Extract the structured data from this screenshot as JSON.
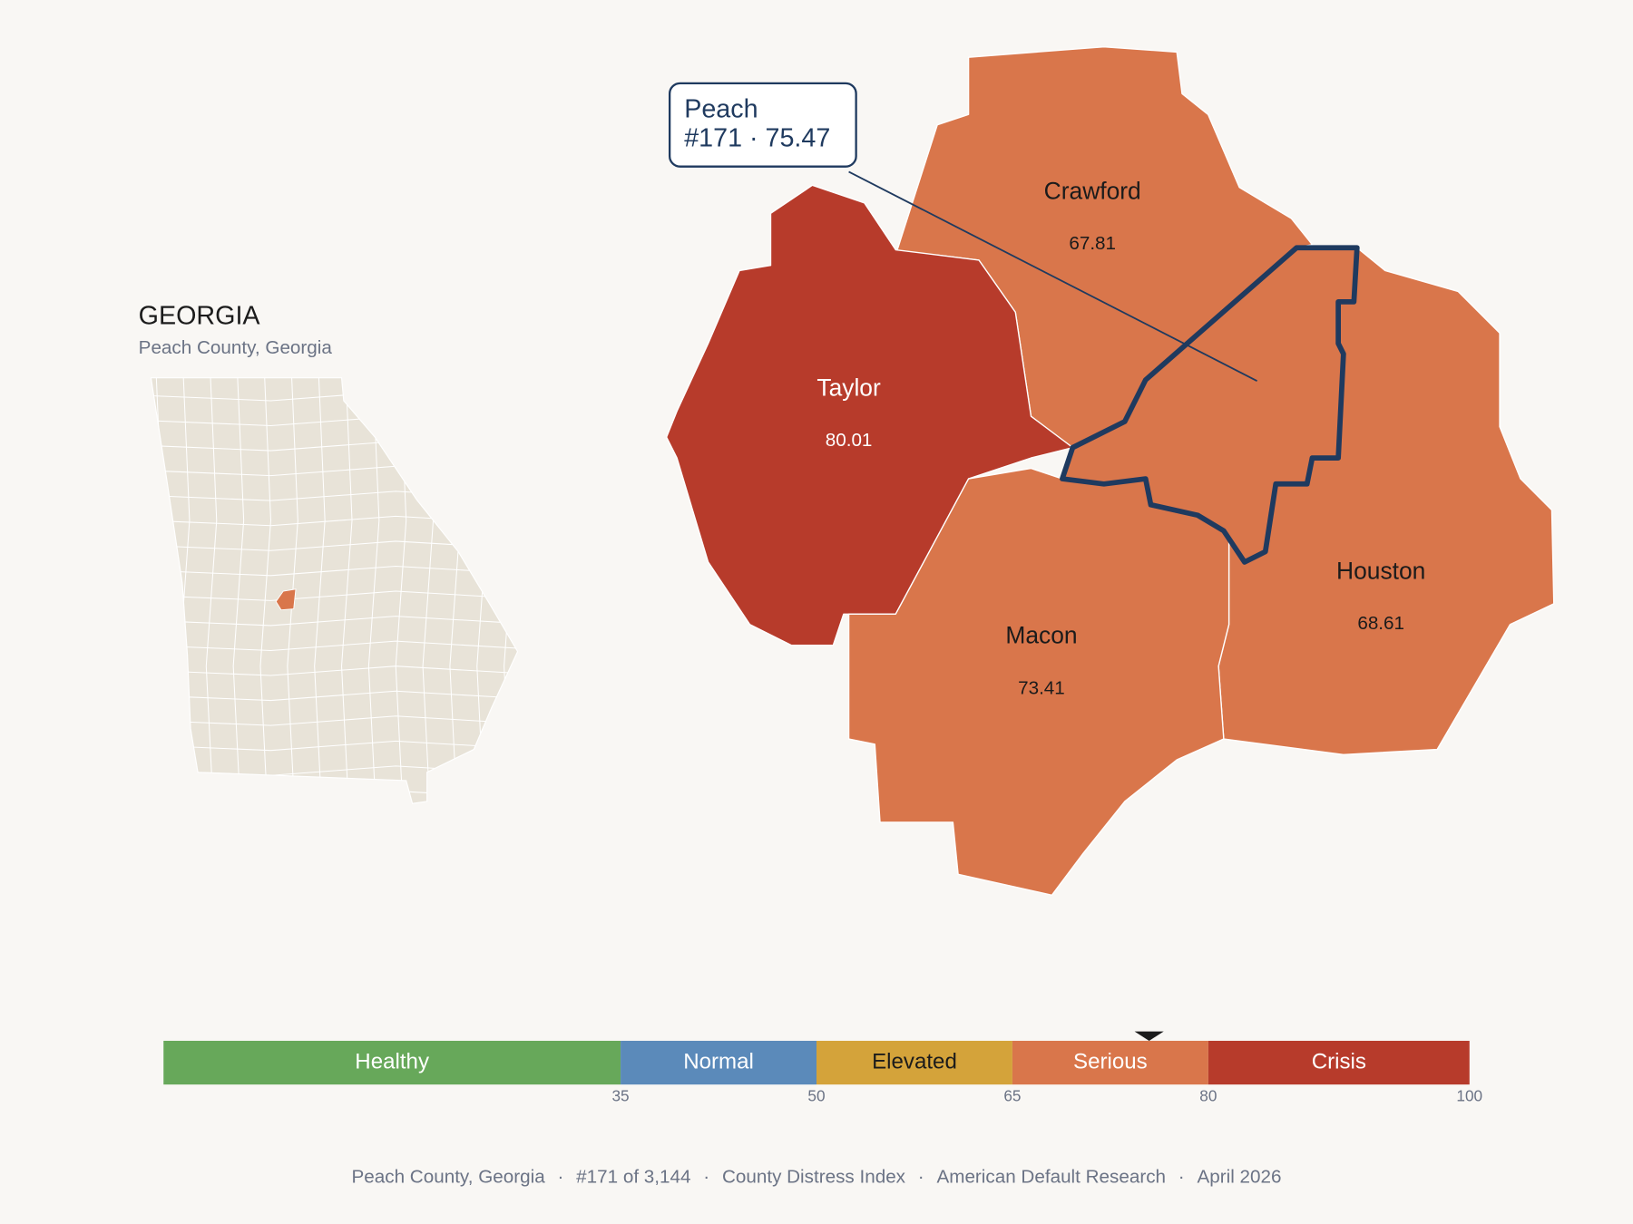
{
  "state_panel": {
    "title": "GEORGIA",
    "subtitle": "Peach County, Georgia"
  },
  "callout": {
    "name": "Peach",
    "detail": "#171 · 75.47"
  },
  "counties": [
    {
      "name": "Crawford",
      "value": 67.81,
      "color": "#d9764b",
      "text_color": "#1b1b1b"
    },
    {
      "name": "Taylor",
      "value": 80.01,
      "color": "#b73b2b",
      "text_color": "#ffffff"
    },
    {
      "name": "Houston",
      "value": 68.61,
      "color": "#d9764b",
      "text_color": "#1b1b1b"
    },
    {
      "name": "Macon",
      "value": 73.41,
      "color": "#d9764b",
      "text_color": "#1b1b1b"
    },
    {
      "name": "Peach",
      "value": 75.47,
      "color": "#d9764b",
      "outline": "#1f3a5f"
    }
  ],
  "scale": {
    "lim": [
      0,
      100
    ],
    "ticks": [
      35,
      50,
      65,
      80,
      100
    ],
    "marker": 75.47,
    "segments": [
      {
        "label": "Healthy",
        "color": "#67a85a",
        "text_color": "#ffffff"
      },
      {
        "label": "Normal",
        "color": "#5b8aba",
        "text_color": "#ffffff"
      },
      {
        "label": "Elevated",
        "color": "#d4a33a",
        "text_color": "#1b1b1b"
      },
      {
        "label": "Serious",
        "color": "#d9764b",
        "text_color": "#ffffff"
      },
      {
        "label": "Crisis",
        "color": "#b73b2b",
        "text_color": "#ffffff"
      }
    ]
  },
  "footer": {
    "items": [
      "Peach County, Georgia",
      "#171 of 3,144",
      "County Distress Index",
      "American Default Research",
      "April 2026"
    ],
    "separator": "·"
  }
}
